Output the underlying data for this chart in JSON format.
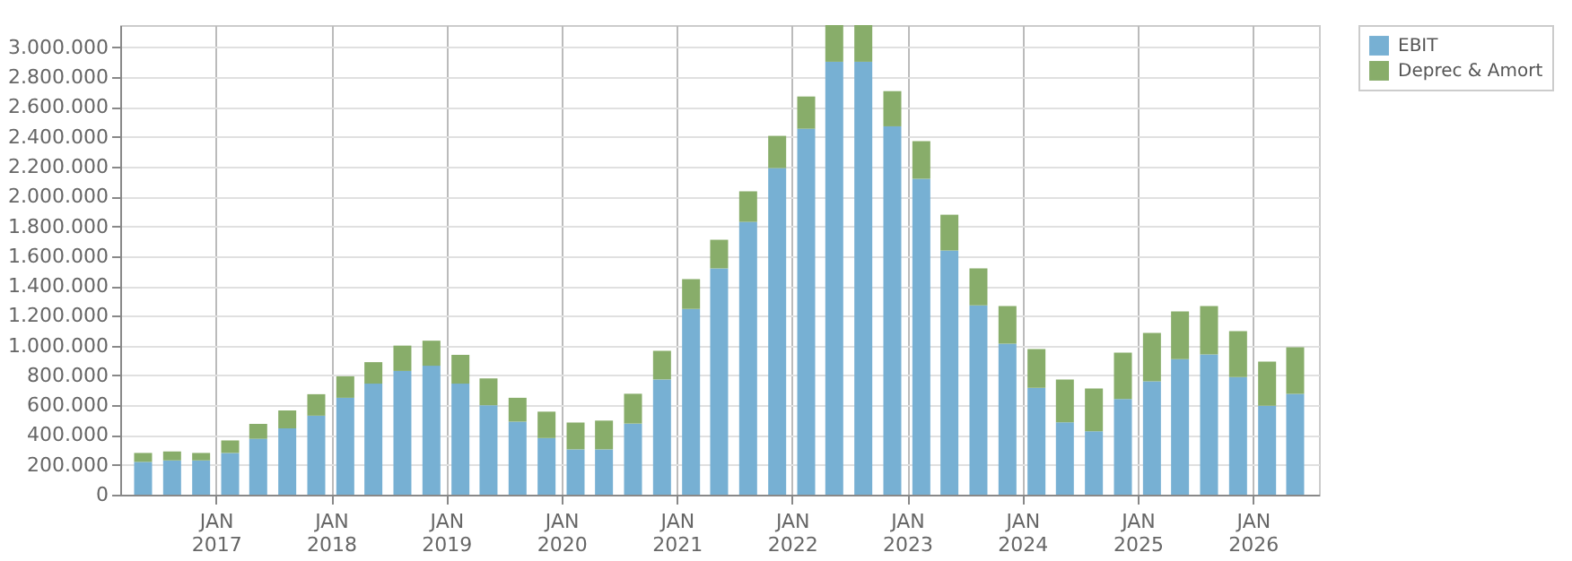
{
  "chart_data": {
    "type": "bar",
    "stacked": true,
    "grid": true,
    "legend": "top right",
    "x": [
      "2016-05-15",
      "2016-08-15",
      "2016-11-15",
      "2017-02-15",
      "2017-05-15",
      "2017-08-15",
      "2017-11-15",
      "2018-02-15",
      "2018-05-15",
      "2018-08-15",
      "2018-11-15",
      "2019-02-15",
      "2019-05-15",
      "2019-08-15",
      "2019-11-15",
      "2020-02-15",
      "2020-05-15",
      "2020-08-15",
      "2020-11-15",
      "2021-02-15",
      "2021-05-15",
      "2021-08-15",
      "2021-11-15",
      "2022-02-15",
      "2022-05-15",
      "2022-08-15",
      "2022-11-15",
      "2023-02-15",
      "2023-05-15",
      "2023-08-15",
      "2023-11-15",
      "2024-02-15",
      "2024-05-15",
      "2024-08-15",
      "2024-11-15",
      "2025-02-15",
      "2025-05-15",
      "2025-08-15",
      "2025-11-15",
      "2026-02-15",
      "2026-05-15"
    ],
    "series": [
      {
        "name": "EBIT",
        "color": "#77b0d3",
        "values": [
          220000,
          230000,
          230000,
          280000,
          375000,
          445000,
          530000,
          650000,
          745000,
          830000,
          865000,
          745000,
          600000,
          490000,
          380000,
          304000,
          304000,
          477000,
          773000,
          1246000,
          1518000,
          1830000,
          2191000,
          2455000,
          2904000,
          2904000,
          2471000,
          2119000,
          1638000,
          1270000,
          1013000,
          717000,
          485000,
          425000,
          641000,
          761000,
          909000,
          941000,
          789000,
          597000,
          677000
        ]
      },
      {
        "name": "Deprec & Amort",
        "color": "#88ad6a",
        "values": [
          60000,
          60000,
          50000,
          84000,
          100000,
          120000,
          144000,
          144000,
          144000,
          170000,
          168000,
          193000,
          180000,
          160000,
          177000,
          180000,
          193000,
          200000,
          192000,
          200000,
          192000,
          205000,
          216000,
          216000,
          246000,
          246000,
          236000,
          252000,
          240000,
          248000,
          253000,
          260000,
          288000,
          288000,
          312000,
          324000,
          320000,
          325000,
          308000,
          296000,
          312000
        ]
      }
    ],
    "xlim": [
      "2016-04-01",
      "2026-07-01"
    ],
    "xticks": [
      {
        "value": "2017-01-01",
        "label": "JAN 2017"
      },
      {
        "value": "2018-01-01",
        "label": "JAN 2018"
      },
      {
        "value": "2019-01-01",
        "label": "JAN 2019"
      },
      {
        "value": "2020-01-01",
        "label": "JAN 2020"
      },
      {
        "value": "2021-01-01",
        "label": "JAN 2021"
      },
      {
        "value": "2022-01-01",
        "label": "JAN 2022"
      },
      {
        "value": "2023-01-01",
        "label": "JAN 2023"
      },
      {
        "value": "2024-01-01",
        "label": "JAN 2024"
      },
      {
        "value": "2025-01-01",
        "label": "JAN 2025"
      },
      {
        "value": "2026-01-01",
        "label": "JAN 2026"
      }
    ],
    "ylim": [
      0,
      3150000
    ],
    "yticks": [
      0,
      {
        "value": 200000,
        "label": "200.000"
      },
      {
        "value": 400000,
        "label": "400.000"
      },
      {
        "value": 600000,
        "label": "600.000"
      },
      {
        "value": 800000,
        "label": "800.000"
      },
      {
        "value": 1000000,
        "label": "1.000.000"
      },
      {
        "value": 1200000,
        "label": "1.200.000"
      },
      {
        "value": 1400000,
        "label": "1.400.000"
      },
      {
        "value": 1600000,
        "label": "1.600.000"
      },
      {
        "value": 1800000,
        "label": "1.800.000"
      },
      {
        "value": 2000000,
        "label": "2.000.000"
      },
      {
        "value": 2200000,
        "label": "2.200.000"
      },
      {
        "value": 2400000,
        "label": "2.400.000"
      },
      {
        "value": 2600000,
        "label": "2.600.000"
      },
      {
        "value": 2800000,
        "label": "2.800.000"
      },
      {
        "value": 3000000,
        "label": "3.000.000"
      }
    ]
  }
}
